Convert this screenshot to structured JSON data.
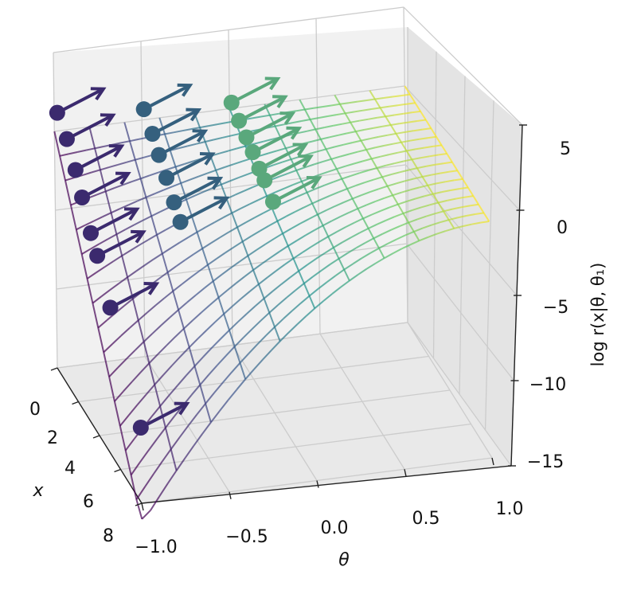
{
  "chart_data": {
    "type": "surface3d",
    "x_axis": {
      "label": "x",
      "ticks": [
        "0",
        "2",
        "4",
        "6",
        "8"
      ],
      "range": [
        0,
        8
      ]
    },
    "theta_axis": {
      "label": "θ",
      "ticks": [
        "−1.0",
        "−0.5",
        "0.0",
        "0.5",
        "1.0"
      ],
      "range": [
        -1,
        1
      ]
    },
    "z_axis": {
      "label": "log r(x|θ, θ₁)",
      "ticks": [
        "5",
        "0",
        "−5",
        "−10",
        "−15"
      ],
      "range": [
        -15,
        5
      ]
    },
    "colormap": "viridis",
    "grid": true,
    "surface": {
      "theta_grid": [
        -1.0,
        -0.8,
        -0.6,
        -0.4,
        -0.2,
        0.0,
        0.2,
        0.4,
        0.6,
        0.8,
        1.0
      ],
      "x_grid": [
        0,
        1,
        2,
        3,
        4,
        5,
        6,
        7,
        8
      ],
      "description_of_values": "log ratio surface, approximately -(theta-1)^2 * x / 2 shaped; near 0 at theta=1, falling to about -16 at theta=-1, x=8"
    },
    "arrow_groups": [
      {
        "theta": -1.0,
        "color": "#3b2a6e",
        "points": [
          [
            0.3,
            1.5
          ],
          [
            1.2,
            0.8
          ],
          [
            2.0,
            -0.3
          ],
          [
            2.6,
            -1.4
          ],
          [
            3.4,
            -2.8
          ],
          [
            4.0,
            -3.6
          ],
          [
            5.2,
            -5.6
          ],
          [
            8.0,
            -10.2
          ]
        ]
      },
      {
        "theta": -0.5,
        "color": "#35607e",
        "points": [
          [
            0.2,
            0.9
          ],
          [
            1.0,
            0.2
          ],
          [
            1.6,
            -0.5
          ],
          [
            2.3,
            -1.2
          ],
          [
            3.0,
            -2.0
          ],
          [
            3.6,
            -2.6
          ]
        ]
      },
      {
        "theta": 0.0,
        "color": "#5aa87c",
        "points": [
          [
            0.2,
            0.6
          ],
          [
            0.9,
            0.2
          ],
          [
            1.6,
            -0.1
          ],
          [
            2.2,
            -0.4
          ],
          [
            2.8,
            -0.8
          ],
          [
            3.3,
            -1.0
          ],
          [
            4.1,
            -1.5
          ]
        ]
      }
    ],
    "colors": {
      "low": "#46136a",
      "mid": "#3d8a8a",
      "high": "#f4e55a",
      "pane": "#ececec"
    }
  }
}
